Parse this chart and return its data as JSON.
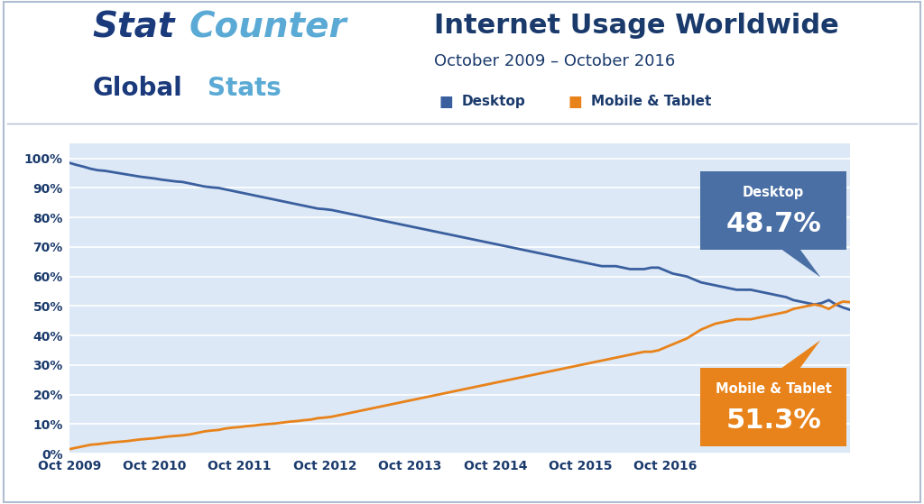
{
  "title": "Internet Usage Worldwide",
  "subtitle": "October 2009 – October 2016",
  "legend_desktop": "Desktop",
  "legend_mobile": "Mobile & Tablet",
  "desktop_label": "Desktop",
  "desktop_pct": "48.7%",
  "mobile_label": "Mobile & Tablet",
  "mobile_pct": "51.3%",
  "desktop_color": "#3a5f9f",
  "mobile_color": "#e8821a",
  "desktop_box_color": "#4a6fa5",
  "mobile_box_color": "#e8821a",
  "bg_color": "#dce8f5",
  "plot_bg": "#dce8f5",
  "outer_bg": "#ffffff",
  "grid_color": "#ffffff",
  "tick_labels": [
    "Oct 2009",
    "Oct 2010",
    "Oct 2011",
    "Oct 2012",
    "Oct 2013",
    "Oct 2014",
    "Oct 2015",
    "Oct 2016"
  ],
  "ytick_labels": [
    "0%",
    "10%",
    "20%",
    "30%",
    "40%",
    "50%",
    "60%",
    "70%",
    "80%",
    "90%",
    "100%"
  ],
  "desktop_data": [
    98.5,
    97.8,
    97.2,
    96.5,
    96.0,
    95.8,
    95.4,
    95.0,
    94.6,
    94.2,
    93.8,
    93.5,
    93.2,
    92.8,
    92.5,
    92.2,
    92.0,
    91.5,
    91.0,
    90.5,
    90.2,
    90.0,
    89.5,
    89.0,
    88.5,
    88.0,
    87.5,
    87.0,
    86.5,
    86.0,
    85.5,
    85.0,
    84.5,
    84.0,
    83.5,
    83.0,
    82.8,
    82.5,
    82.0,
    81.5,
    81.0,
    80.5,
    80.0,
    79.5,
    79.0,
    78.5,
    78.0,
    77.5,
    77.0,
    76.5,
    76.0,
    75.5,
    75.0,
    74.5,
    74.0,
    73.5,
    73.0,
    72.5,
    72.0,
    71.5,
    71.0,
    70.5,
    70.0,
    69.5,
    69.0,
    68.5,
    68.0,
    67.5,
    67.0,
    66.5,
    66.0,
    65.5,
    65.0,
    64.5,
    64.0,
    63.5,
    63.5,
    63.5,
    63.0,
    62.5,
    62.5,
    62.5,
    63.0,
    63.0,
    62.0,
    61.0,
    60.5,
    60.0,
    59.0,
    58.0,
    57.5,
    57.0,
    56.5,
    56.0,
    55.5,
    55.5,
    55.5,
    55.0,
    54.5,
    54.0,
    53.5,
    53.0,
    52.0,
    51.5,
    51.0,
    50.5,
    51.0,
    52.0,
    50.5,
    49.5,
    48.7
  ],
  "mobile_data": [
    1.5,
    2.0,
    2.5,
    3.0,
    3.2,
    3.5,
    3.8,
    4.0,
    4.2,
    4.5,
    4.8,
    5.0,
    5.2,
    5.5,
    5.8,
    6.0,
    6.2,
    6.5,
    7.0,
    7.5,
    7.8,
    8.0,
    8.5,
    8.8,
    9.0,
    9.3,
    9.5,
    9.8,
    10.0,
    10.2,
    10.5,
    10.8,
    11.0,
    11.3,
    11.5,
    12.0,
    12.2,
    12.5,
    13.0,
    13.5,
    14.0,
    14.5,
    15.0,
    15.5,
    16.0,
    16.5,
    17.0,
    17.5,
    18.0,
    18.5,
    19.0,
    19.5,
    20.0,
    20.5,
    21.0,
    21.5,
    22.0,
    22.5,
    23.0,
    23.5,
    24.0,
    24.5,
    25.0,
    25.5,
    26.0,
    26.5,
    27.0,
    27.5,
    28.0,
    28.5,
    29.0,
    29.5,
    30.0,
    30.5,
    31.0,
    31.5,
    32.0,
    32.5,
    33.0,
    33.5,
    34.0,
    34.5,
    34.5,
    35.0,
    36.0,
    37.0,
    38.0,
    39.0,
    40.5,
    42.0,
    43.0,
    44.0,
    44.5,
    45.0,
    45.5,
    45.5,
    45.5,
    46.0,
    46.5,
    47.0,
    47.5,
    48.0,
    49.0,
    49.5,
    50.0,
    50.5,
    50.0,
    49.0,
    50.5,
    51.5,
    51.3
  ],
  "title_color": "#1a3a6c",
  "subtitle_color": "#1a3a6c",
  "axis_label_color": "#1a3a6c",
  "header_sep_color": "#b0bcd0",
  "border_color": "#b0bcd0"
}
